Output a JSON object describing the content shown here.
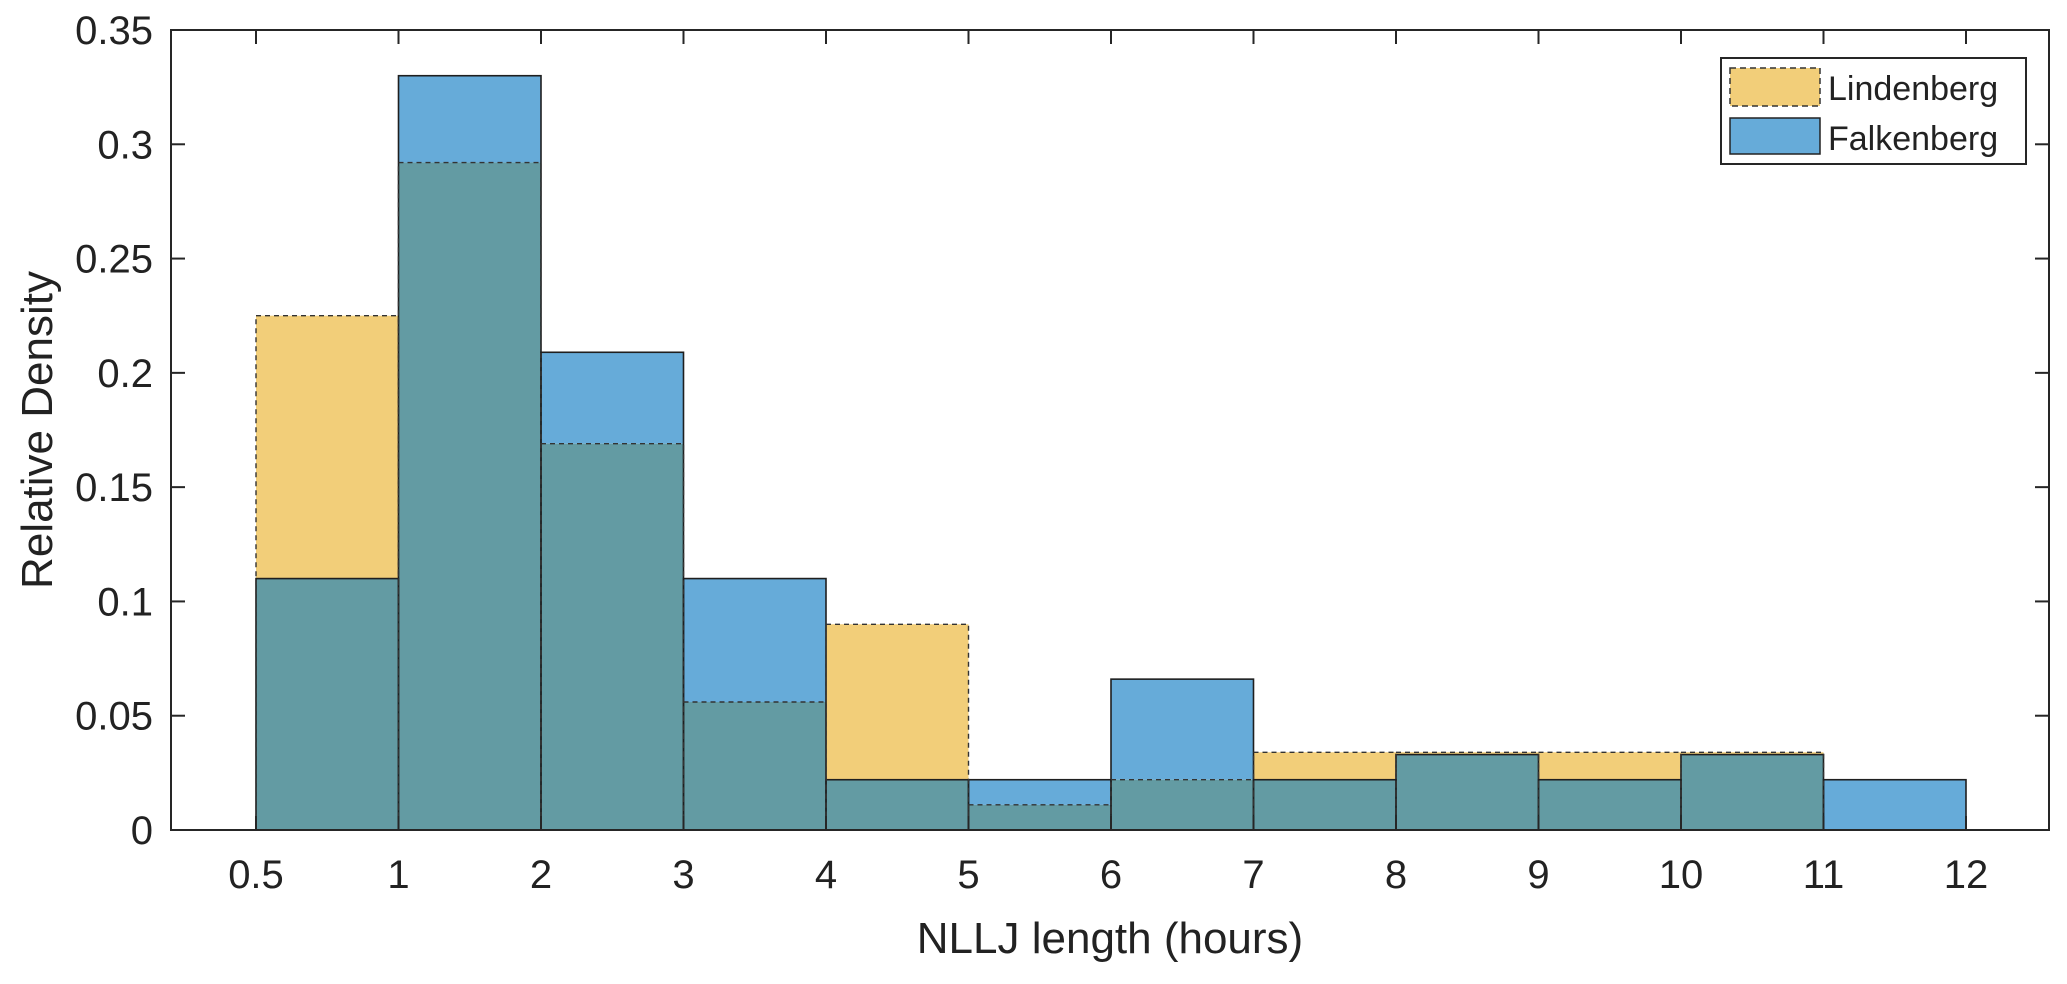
{
  "chart_data": {
    "type": "bar",
    "subtype": "overlaid-histogram",
    "xlabel": "NLLJ length (hours)",
    "ylabel": "Relative Density",
    "x_tick_labels": [
      "0.5",
      "1",
      "2",
      "3",
      "4",
      "5",
      "6",
      "7",
      "8",
      "9",
      "10",
      "11",
      "12"
    ],
    "y_ticks": [
      0,
      0.05,
      0.1,
      0.15,
      0.2,
      0.25,
      0.3,
      0.35
    ],
    "y_tick_labels": [
      "0",
      "0.05",
      "0.1",
      "0.15",
      "0.2",
      "0.25",
      "0.3",
      "0.35"
    ],
    "ylim": [
      0,
      0.35
    ],
    "bins": [
      {
        "from": "0.5",
        "to": "1"
      },
      {
        "from": "1",
        "to": "2"
      },
      {
        "from": "2",
        "to": "3"
      },
      {
        "from": "3",
        "to": "4"
      },
      {
        "from": "4",
        "to": "5"
      },
      {
        "from": "5",
        "to": "6"
      },
      {
        "from": "6",
        "to": "7"
      },
      {
        "from": "7",
        "to": "8"
      },
      {
        "from": "8",
        "to": "9"
      },
      {
        "from": "9",
        "to": "10"
      },
      {
        "from": "10",
        "to": "11"
      },
      {
        "from": "11",
        "to": "12"
      }
    ],
    "series": [
      {
        "name": "Lindenberg",
        "color": "#F2CE79",
        "edge_style": "dashed",
        "values": [
          0.225,
          0.292,
          0.169,
          0.056,
          0.09,
          0.011,
          0.022,
          0.034,
          0.034,
          0.034,
          0.034,
          0.0
        ]
      },
      {
        "name": "Falkenberg",
        "color": "#66ABD9",
        "edge_style": "solid",
        "values": [
          0.11,
          0.33,
          0.209,
          0.11,
          0.022,
          0.022,
          0.066,
          0.022,
          0.033,
          0.022,
          0.033,
          0.022
        ]
      }
    ],
    "overlap_color": "#639BA3",
    "legend_position": "top-right",
    "grid": false
  }
}
